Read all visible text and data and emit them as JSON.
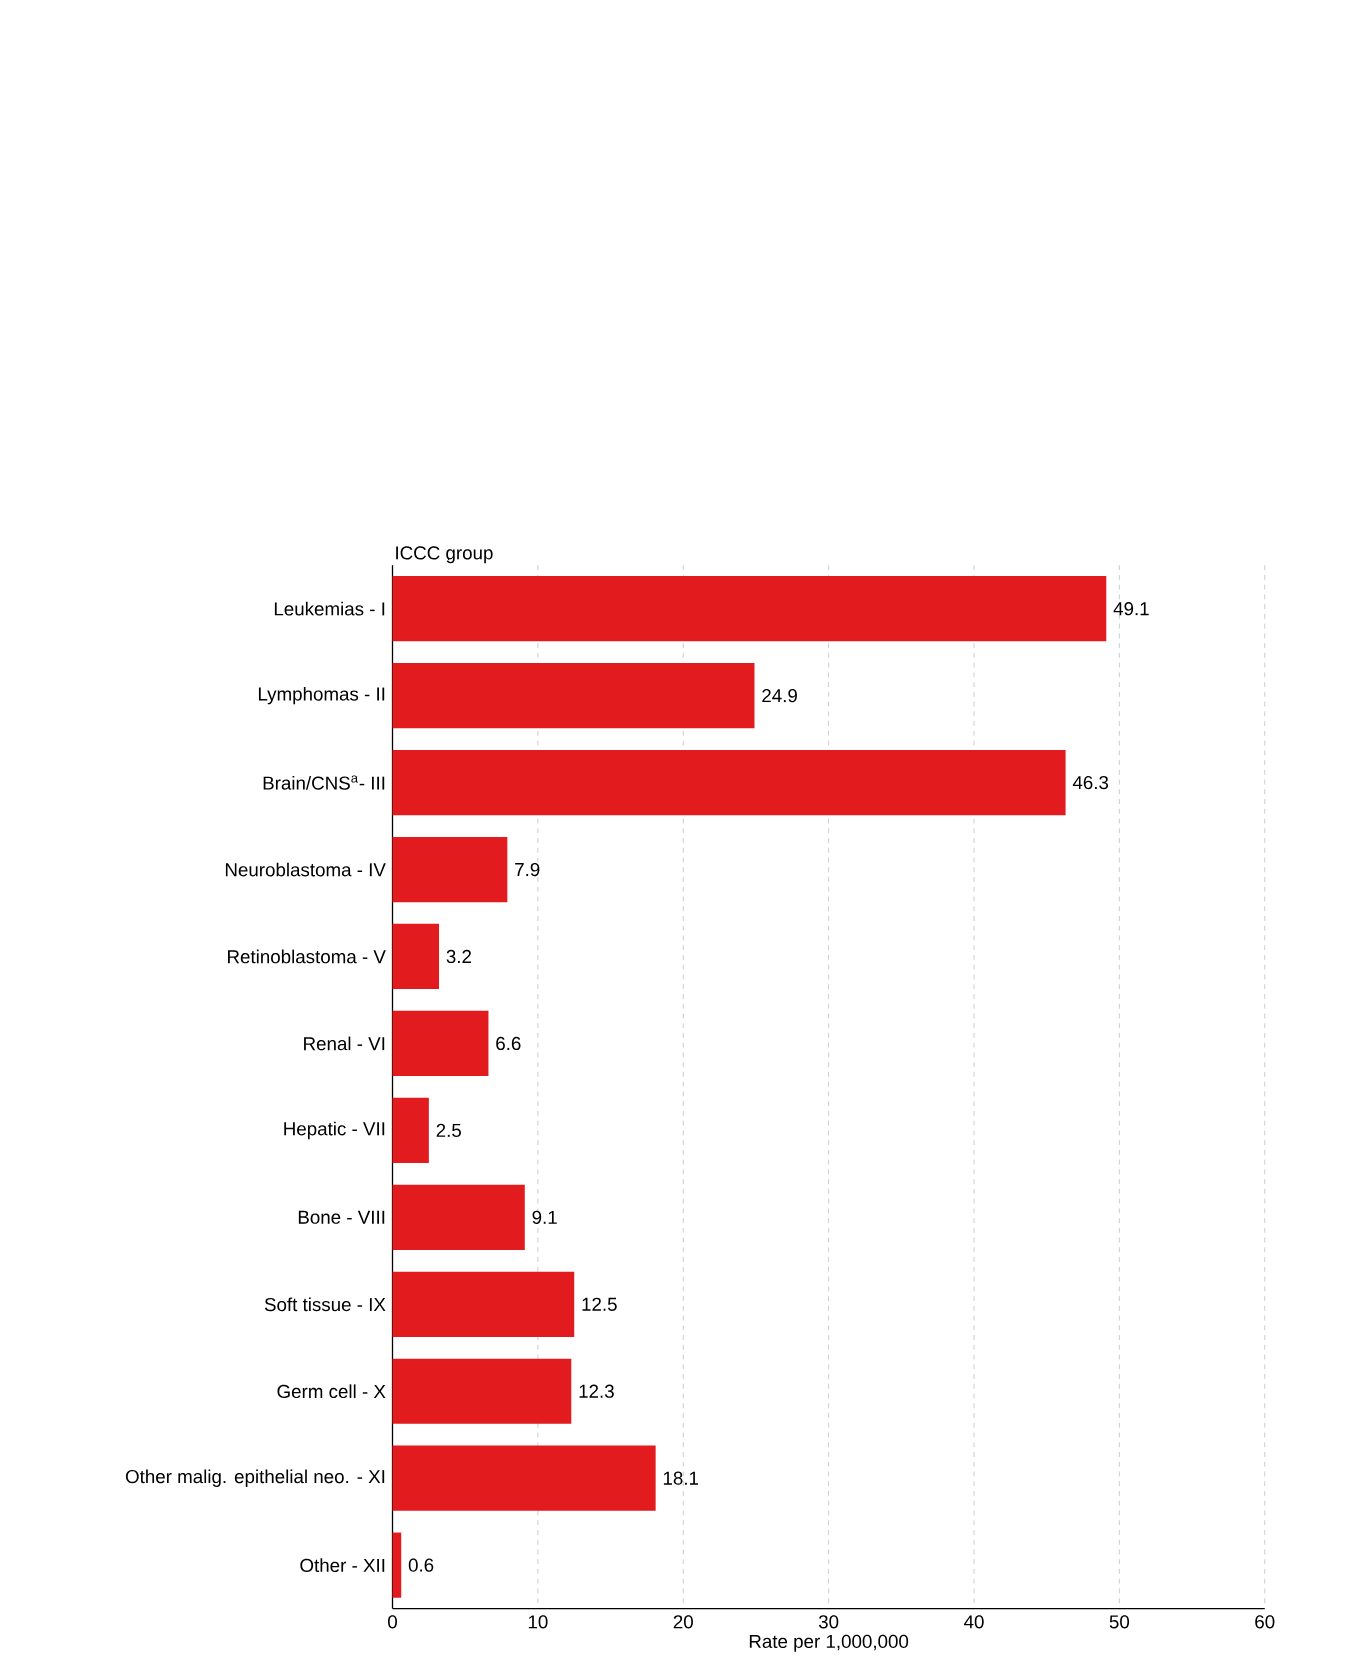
{
  "chart_data": {
    "type": "bar",
    "orientation": "horizontal",
    "ylabel": "ICCC group",
    "xlabel": "Rate per 1,000,000",
    "categories": [
      "Leukemias - I",
      "Lymphomas - II",
      "Brain/CNS$^{a}$- III",
      "Neuroblastoma - IV",
      "Retinoblastoma - V",
      "Renal - VI",
      "Hepatic - VII",
      "Bone - VIII",
      "Soft tissue - IX",
      "Germ cell - X",
      "Other malig. epithelial neo. - XI",
      "Other - XII"
    ],
    "values": [
      49.1,
      24.9,
      46.3,
      7.9,
      3.2,
      6.6,
      2.5,
      9.1,
      12.5,
      12.3,
      18.1,
      0.6
    ],
    "color": "#e11b1e",
    "data_labels": true,
    "xlim": [
      0,
      60
    ],
    "xticks": [
      0,
      10,
      20,
      30,
      40,
      50,
      60
    ],
    "grid": "x"
  }
}
